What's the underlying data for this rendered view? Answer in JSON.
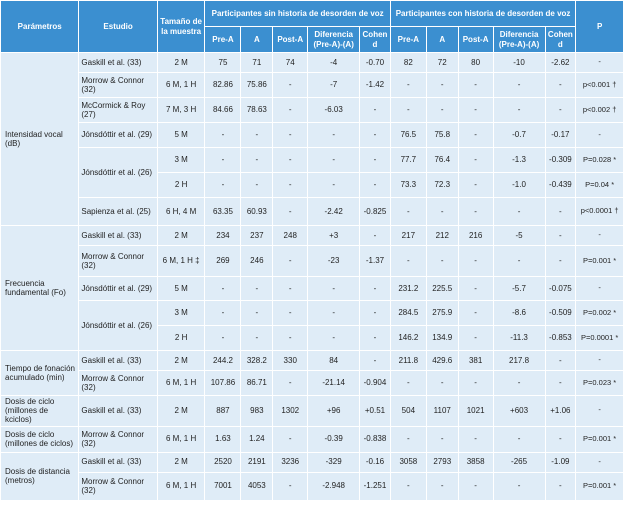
{
  "header": {
    "parametros": "Parámetros",
    "estudio": "Estudio",
    "tamano": "Tamaño de la muestra",
    "group_sin": "Participantes sin historia de desorden de voz",
    "group_con": "Participantes con historia de desorden de voz",
    "p": "P",
    "sub": [
      "Pre-A",
      "A",
      "Post-A",
      "Diferencia (Pre-A)-(A)",
      "Cohen d"
    ]
  },
  "rows": [
    {
      "param": "Intensidad vocal (dB)",
      "study": "Gaskill et al. (33)",
      "n": "2 M",
      "v": [
        "75",
        "71",
        "74",
        "-4",
        "-0.70",
        "82",
        "72",
        "80",
        "-10",
        "-2.62",
        "-"
      ]
    },
    {
      "study": "Morrow & Connor (32)",
      "n": "6 M, 1 H",
      "v": [
        "82.86",
        "75.86",
        "-",
        "-7",
        "-1.42",
        "-",
        "-",
        "-",
        "-",
        "-",
        "p<0.001 †"
      ]
    },
    {
      "study": "McCormick & Roy (27)",
      "n": "7 M, 3 H",
      "v": [
        "84.66",
        "78.63",
        "-",
        "-6.03",
        "-",
        "-",
        "-",
        "-",
        "-",
        "-",
        "p<0.002 †"
      ]
    },
    {
      "study": "Jónsdóttir et al. (29)",
      "n": "5 M",
      "v": [
        "-",
        "-",
        "-",
        "-",
        "-",
        "76.5",
        "75.8",
        "-",
        "-0.7",
        "-0.17",
        "-"
      ]
    },
    {
      "study": "Jónsdóttir et al. (26)",
      "n": "3 M",
      "v": [
        "-",
        "-",
        "-",
        "-",
        "-",
        "77.7",
        "76.4",
        "-",
        "-1.3",
        "-0.309",
        "P=0.028 *"
      ]
    },
    {
      "n": "2 H",
      "v": [
        "-",
        "-",
        "-",
        "-",
        "-",
        "73.3",
        "72.3",
        "-",
        "-1.0",
        "-0.439",
        "P=0.04 *"
      ]
    },
    {
      "study": "Sapienza et al. (25)",
      "n": "6 H, 4 M",
      "v": [
        "63.35",
        "60.93",
        "-",
        "-2.42",
        "-0.825",
        "-",
        "-",
        "-",
        "-",
        "-",
        "p<0.0001 †"
      ]
    },
    {
      "param": "Frecuencia fundamental (Fo)",
      "study": "Gaskill et al. (33)",
      "n": "2 M",
      "v": [
        "234",
        "237",
        "248",
        "+3",
        "-",
        "217",
        "212",
        "216",
        "-5",
        "-",
        "-"
      ]
    },
    {
      "study": "Morrow & Connor (32)",
      "n": "6 M, 1 H ‡",
      "v": [
        "269",
        "246",
        "-",
        "-23",
        "-1.37",
        "-",
        "-",
        "-",
        "-",
        "-",
        "P=0.001 *"
      ]
    },
    {
      "study": "Jónsdóttir et al. (29)",
      "n": "5 M",
      "v": [
        "-",
        "-",
        "-",
        "-",
        "-",
        "231.2",
        "225.5",
        "-",
        "-5.7",
        "-0.075",
        "-"
      ]
    },
    {
      "study": "Jónsdóttir et al. (26)",
      "n": "3 M",
      "v": [
        "-",
        "-",
        "-",
        "-",
        "-",
        "284.5",
        "275.9",
        "-",
        "-8.6",
        "-0.509",
        "P=0.002 *"
      ]
    },
    {
      "n": "2 H",
      "v": [
        "-",
        "-",
        "-",
        "-",
        "-",
        "146.2",
        "134.9",
        "-",
        "-11.3",
        "-0.853",
        "P=0.0001 *"
      ]
    },
    {
      "param": "Tiempo de fonación acumulado (min)",
      "study": "Gaskill et al. (33)",
      "n": "2 M",
      "v": [
        "244.2",
        "328.2",
        "330",
        "84",
        "-",
        "211.8",
        "429.6",
        "381",
        "217.8",
        "-",
        "-"
      ]
    },
    {
      "study": "Morrow & Connor (32)",
      "n": "6 M, 1 H",
      "v": [
        "107.86",
        "86.71",
        "-",
        "-21.14",
        "-0.904",
        "-",
        "-",
        "-",
        "-",
        "-",
        "P=0.023 *"
      ]
    },
    {
      "param": "Dosis de ciclo (millones de kciclos)",
      "study": "Gaskill et al. (33)",
      "n": "2 M",
      "v": [
        "887",
        "983",
        "1302",
        "+96",
        "+0.51",
        "504",
        "1107",
        "1021",
        "+603",
        "+1.06",
        "-"
      ]
    },
    {
      "param": "Dosis de ciclo (millones de ciclos)",
      "study": "Morrow & Connor (32)",
      "n": "6 M, 1 H",
      "v": [
        "1.63",
        "1.24",
        "-",
        "-0.39",
        "-0.838",
        "-",
        "-",
        "-",
        "-",
        "-",
        "P=0.001 *"
      ]
    },
    {
      "param": "Dosis de distancia (metros)",
      "study": "Gaskill et al. (33)",
      "n": "2 M",
      "v": [
        "2520",
        "2191",
        "3236",
        "-329",
        "-0.16",
        "3058",
        "2793",
        "3858",
        "-265",
        "-1.09",
        "-"
      ]
    },
    {
      "study": "Morrow & Connor (32)",
      "n": "6 M, 1 H",
      "v": [
        "7001",
        "4053",
        "-",
        "-2.948",
        "-1.251",
        "-",
        "-",
        "-",
        "-",
        "-",
        "P=0.001 *"
      ]
    }
  ]
}
